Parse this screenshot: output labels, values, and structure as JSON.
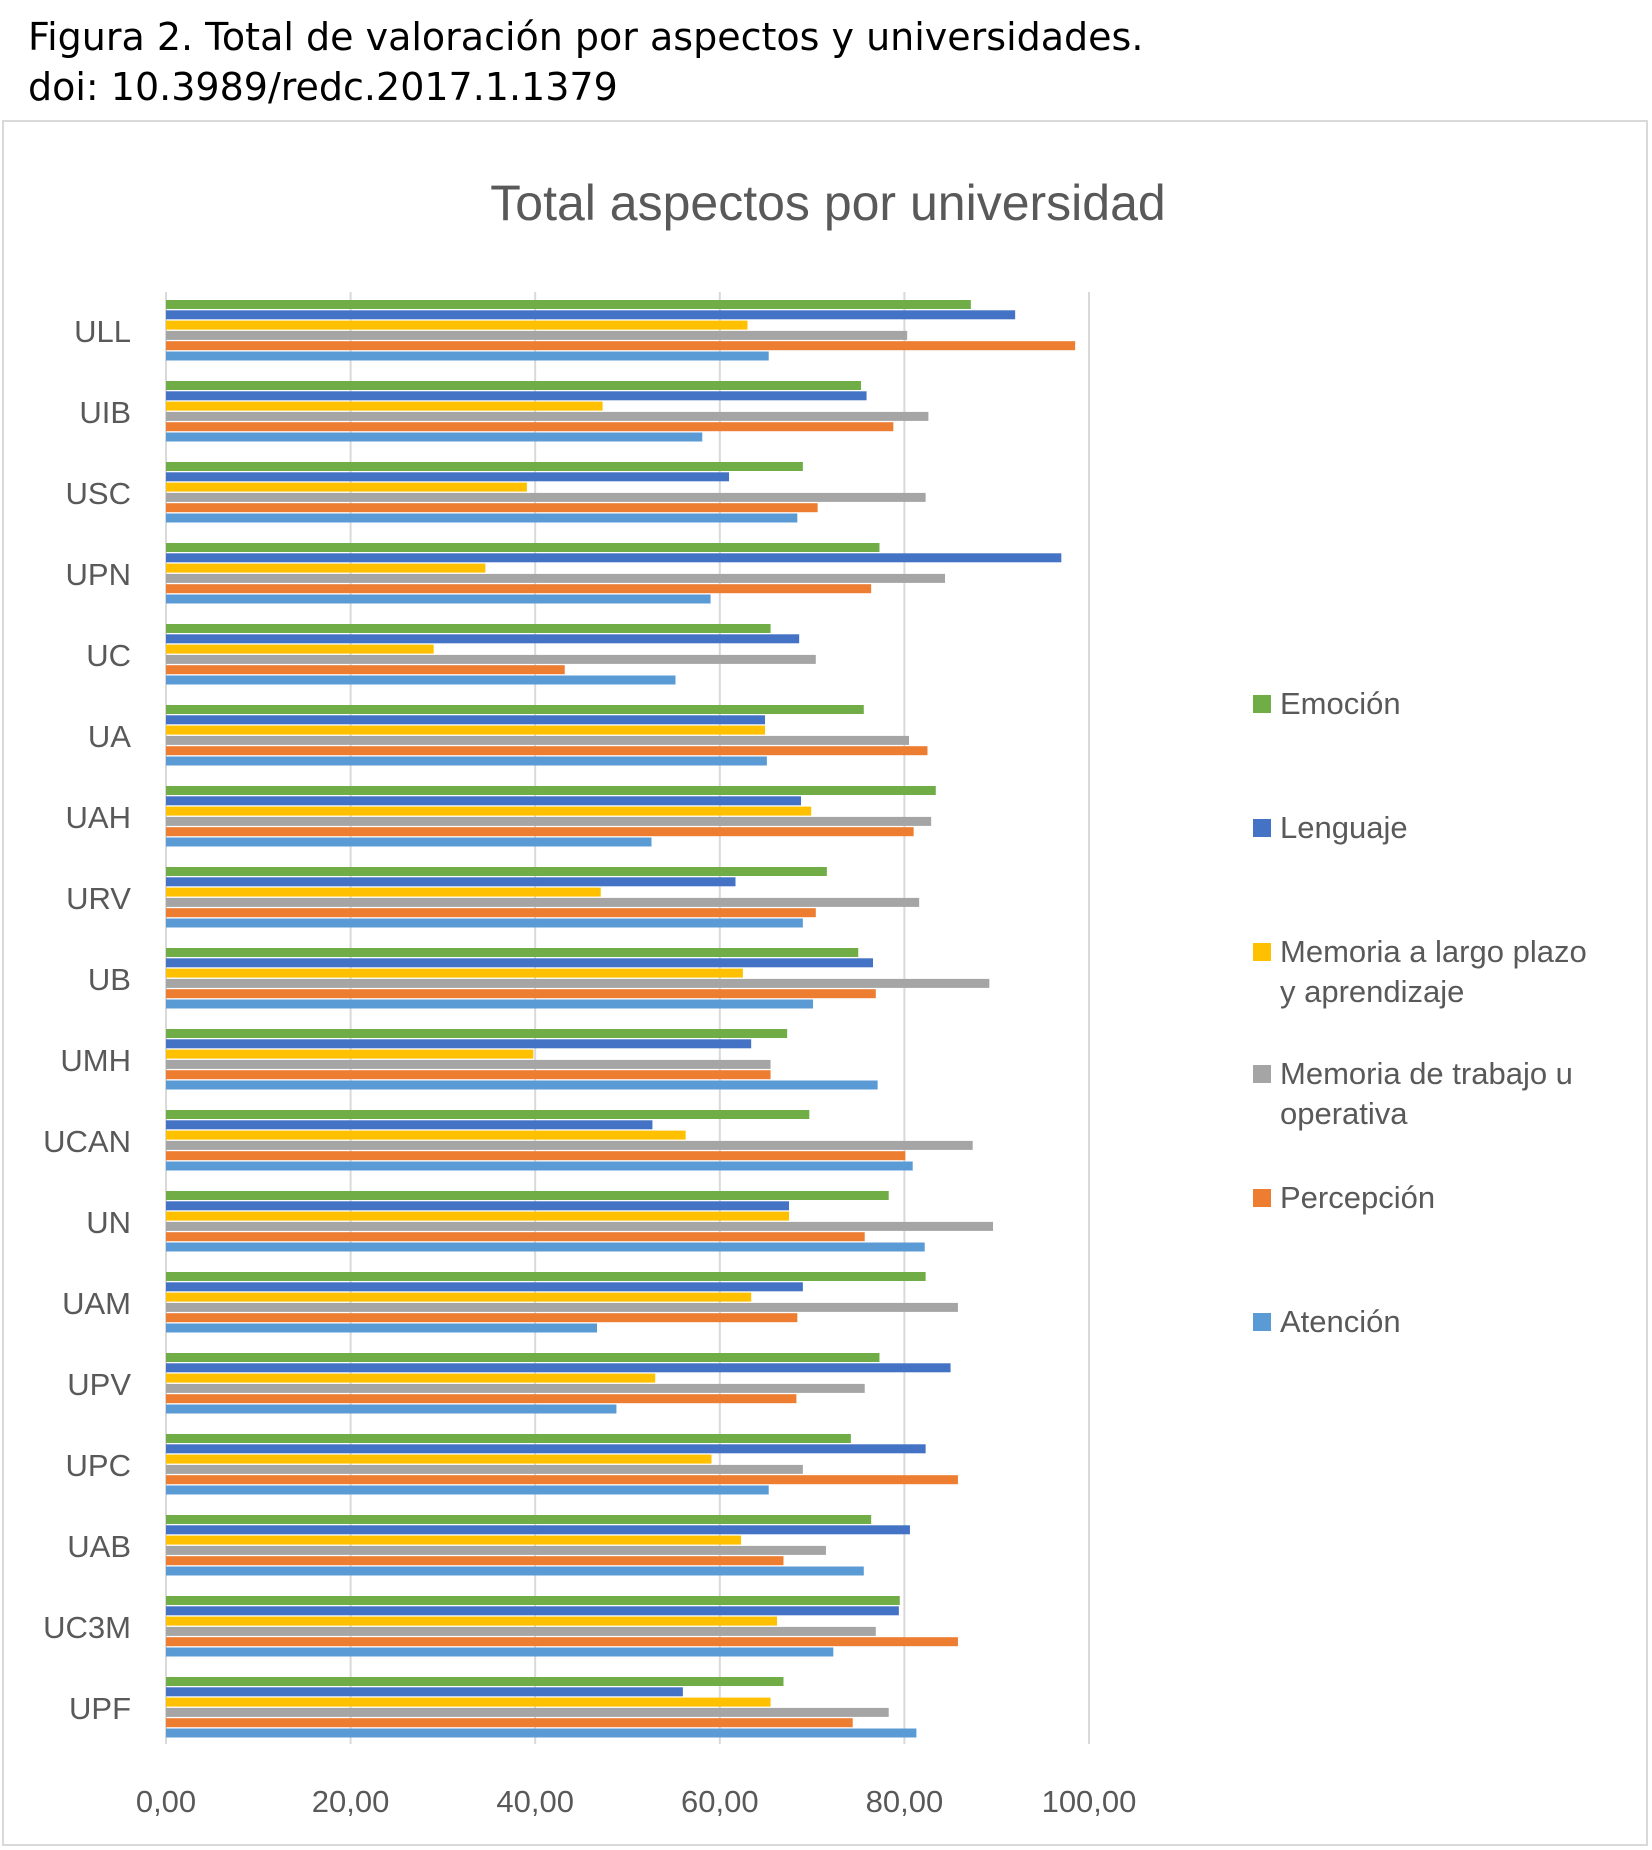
{
  "caption": {
    "line1": "Figura 2. Total de valoración por aspectos y universidades.",
    "line2": "doi: 10.3989/redc.2017.1.1379"
  },
  "chart_data": {
    "type": "bar",
    "orientation": "horizontal",
    "title": "Total aspectos por universidad",
    "xlabel": "",
    "ylabel": "",
    "xlim": [
      0,
      100
    ],
    "x_ticks": [
      "0,00",
      "20,00",
      "40,00",
      "60,00",
      "80,00",
      "100,00"
    ],
    "grid": "vertical",
    "legend_position": "right",
    "categories": [
      "ULL",
      "UIB",
      "USC",
      "UPN",
      "UC",
      "UA",
      "UAH",
      "URV",
      "UB",
      "UMH",
      "UCAN",
      "UN",
      "UAM",
      "UPV",
      "UPC",
      "UAB",
      "UC3M",
      "UPF"
    ],
    "series": [
      {
        "name": "Emoción",
        "color": "#70ad47",
        "values": [
          87.2,
          75.3,
          69.0,
          77.3,
          65.5,
          75.6,
          83.4,
          71.6,
          75.0,
          67.3,
          69.7,
          78.3,
          82.3,
          77.3,
          74.2,
          76.4,
          79.5,
          66.9
        ]
      },
      {
        "name": "Lenguaje",
        "color": "#4472c4",
        "values": [
          92.0,
          75.9,
          61.0,
          97.0,
          68.6,
          64.9,
          68.8,
          61.7,
          76.6,
          63.4,
          52.7,
          67.5,
          69.0,
          85.0,
          82.3,
          80.6,
          79.4,
          56.0
        ]
      },
      {
        "name": "Memoria a largo plazo y aprendizaje",
        "color": "#ffc000",
        "values": [
          63.0,
          47.3,
          39.1,
          34.6,
          29.0,
          64.9,
          69.9,
          47.1,
          62.5,
          39.8,
          56.3,
          67.5,
          63.4,
          53.0,
          59.1,
          62.3,
          66.2,
          65.5
        ]
      },
      {
        "name": "Memoria de trabajo u operativa",
        "color": "#a5a5a5",
        "values": [
          80.3,
          82.6,
          82.3,
          84.4,
          70.4,
          80.5,
          82.9,
          81.6,
          89.2,
          65.5,
          87.4,
          89.6,
          85.8,
          75.7,
          69.0,
          71.5,
          76.9,
          78.3
        ]
      },
      {
        "name": "Percepción",
        "color": "#ed7d31",
        "values": [
          98.5,
          78.8,
          70.6,
          76.4,
          43.2,
          82.5,
          81.0,
          70.4,
          76.9,
          65.5,
          80.1,
          75.7,
          68.4,
          68.3,
          85.8,
          66.9,
          85.8,
          74.4
        ]
      },
      {
        "name": "Atención",
        "color": "#5b9bd5",
        "values": [
          65.3,
          58.1,
          68.4,
          59.0,
          55.2,
          65.1,
          52.6,
          69.0,
          70.1,
          77.1,
          80.9,
          82.2,
          46.7,
          48.8,
          65.3,
          75.6,
          72.3,
          81.3
        ]
      }
    ]
  }
}
